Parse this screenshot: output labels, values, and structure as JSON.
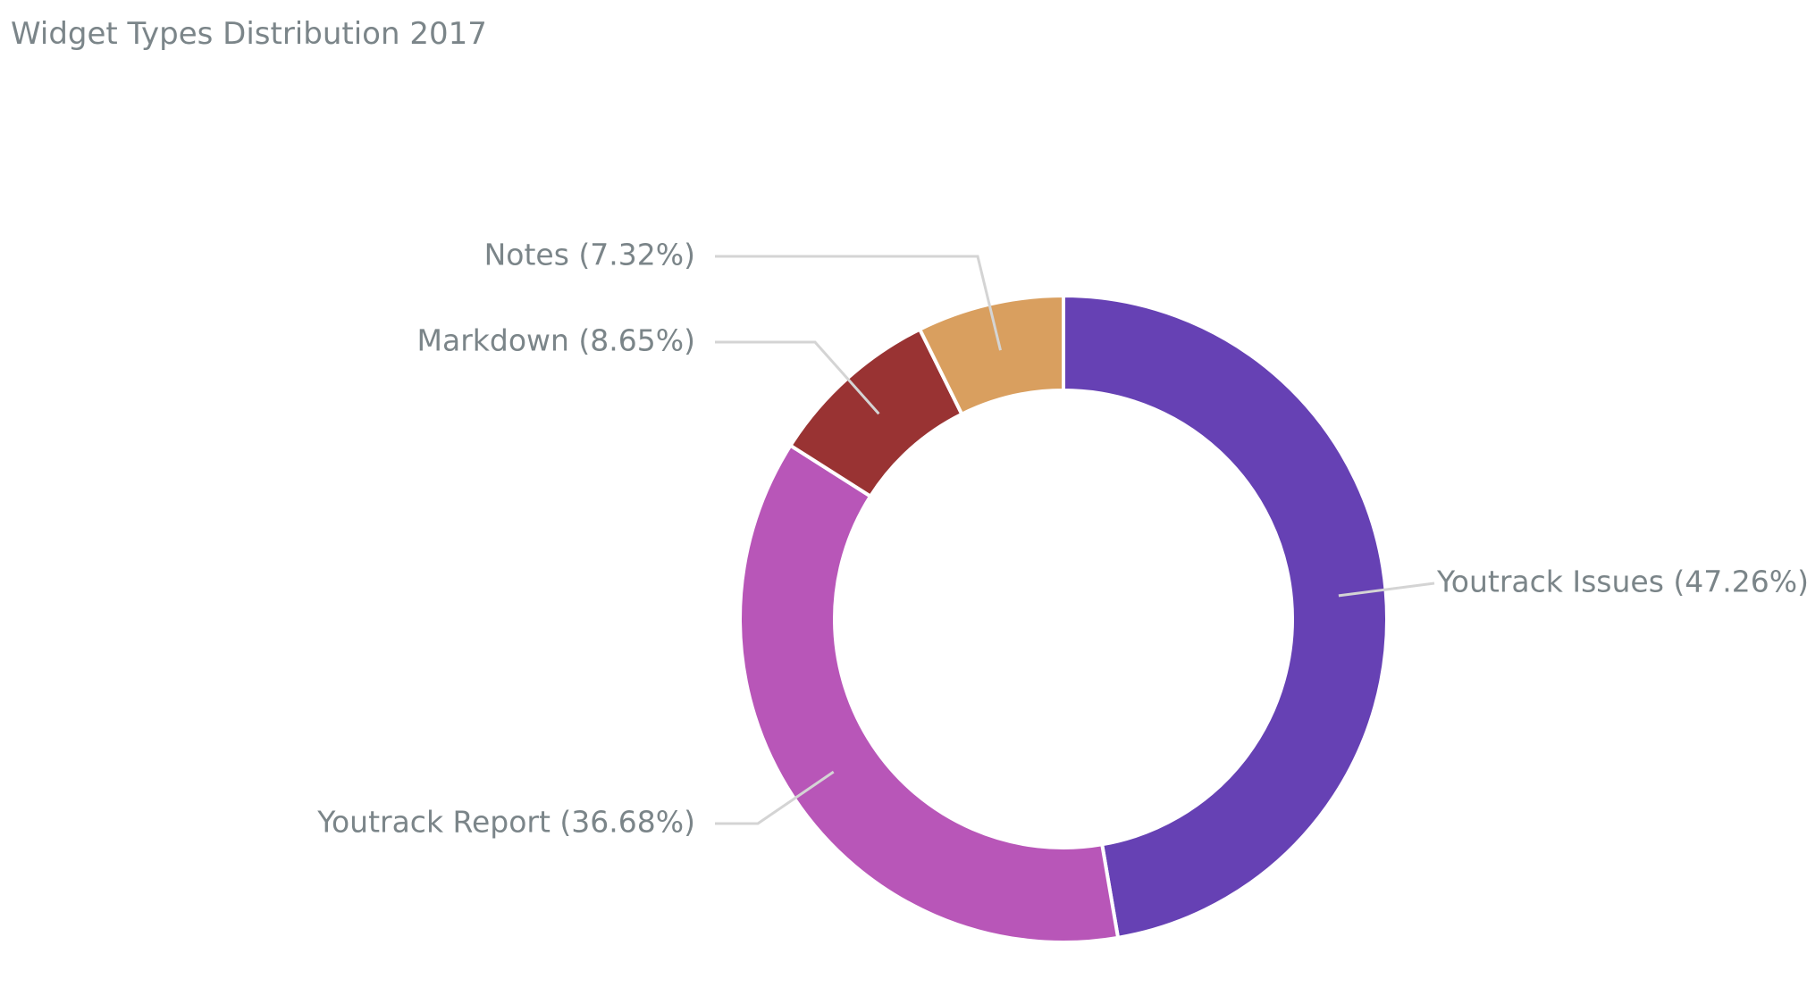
{
  "title": "Widget Types Distribution 2017",
  "chart_data": {
    "type": "pie",
    "donut": true,
    "title": "Widget Types Distribution 2017",
    "slices": [
      {
        "label": "Youtrack Issues (47.26%)",
        "name": "Youtrack Issues",
        "value": 47.26,
        "color": "#6641b4"
      },
      {
        "label": "Youtrack Report (36.68%)",
        "name": "Youtrack Report",
        "value": 36.68,
        "color": "#b856b8"
      },
      {
        "label": "Markdown (8.65%)",
        "name": "Markdown",
        "value": 8.65,
        "color": "#993333"
      },
      {
        "label": "Notes (7.32%)",
        "name": "Notes",
        "value": 7.32,
        "color": "#d99f5f"
      }
    ],
    "start": "12 o'clock",
    "direction": "clockwise",
    "legend": "none"
  }
}
